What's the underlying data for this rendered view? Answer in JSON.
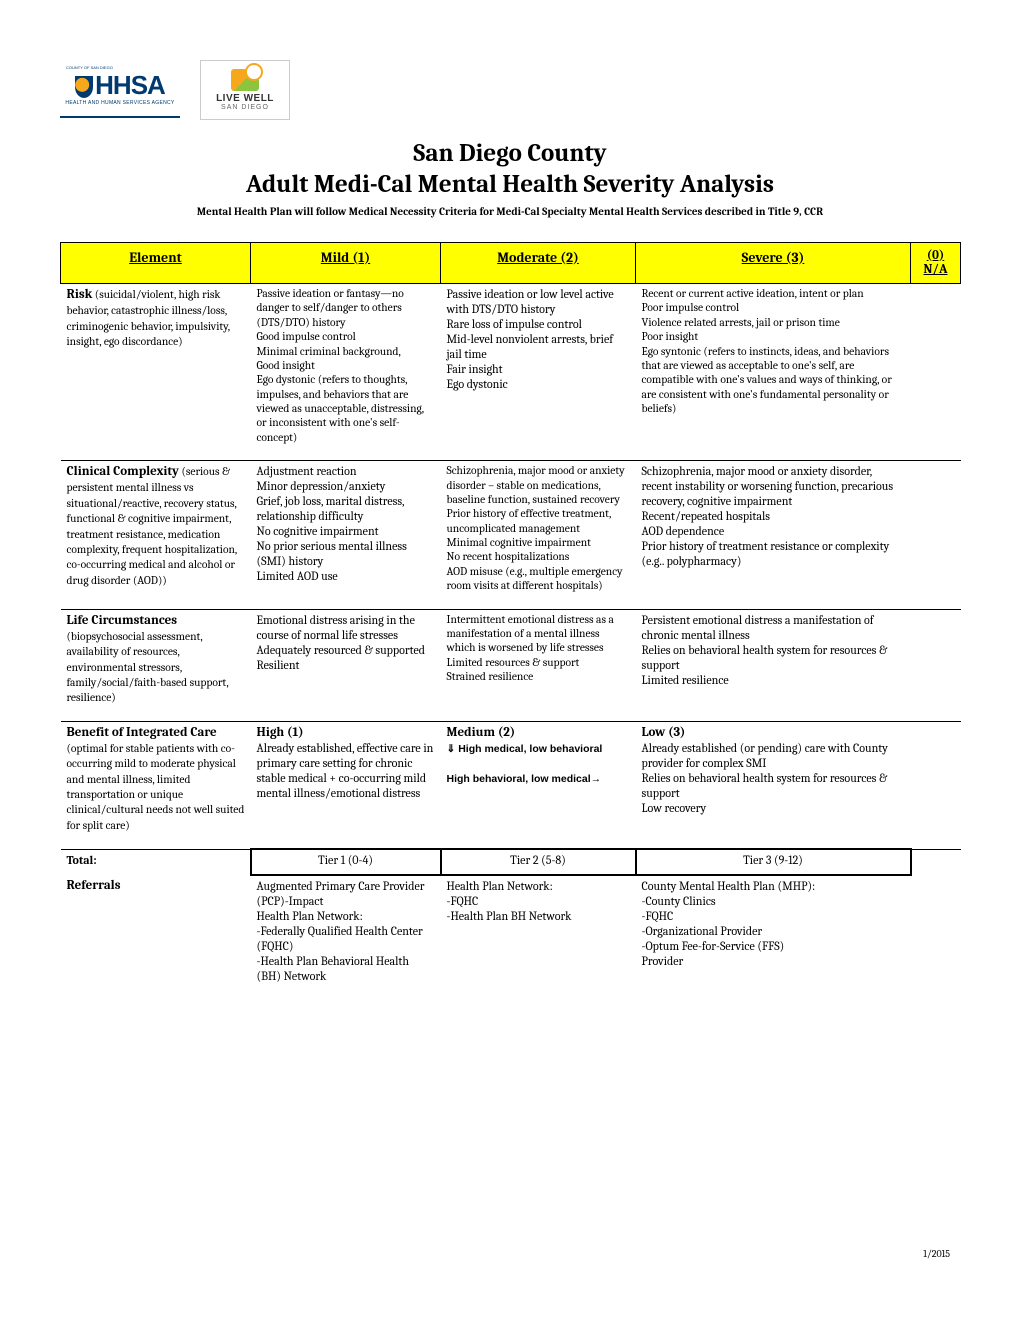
{
  "logos": {
    "hhsa_top": "COUNTY OF SAN DIEGO",
    "hhsa_main": "HHSA",
    "hhsa_sub": "HEALTH AND HUMAN SERVICES AGENCY",
    "livewell_line1": "LIVE WELL",
    "livewell_line2": "SAN DIEGO"
  },
  "title_line1": "San Diego County",
  "title_line2": "Adult Medi-Cal Mental Health Severity Analysis",
  "subtitle": "Mental Health Plan will follow Medical Necessity Criteria for Medi-Cal Specialty Mental Health Services described in Title 9, CCR",
  "headers": {
    "element": "Element",
    "mild": "Mild (1)",
    "moderate": "Moderate (2)",
    "severe": "Severe (3)",
    "na_top": "(0)",
    "na_bot": "N/A"
  },
  "rows": {
    "risk": {
      "title": "Risk",
      "desc": " (suicidal/violent, high risk behavior, catastrophic illness/loss, criminogenic behavior, impulsivity, insight, ego discordance)",
      "mild": "Passive ideation or fantasy—no danger to self/danger to others (DTS/DTO) history\nGood impulse control\nMinimal criminal background,\nGood insight\nEgo dystonic (refers to thoughts, impulses, and behaviors that are viewed as unacceptable, distressing, or inconsistent with one's self-concept)",
      "moderate": "Passive ideation or low level active with DTS/DTO history\nRare loss of impulse control\nMid-level nonviolent arrests, brief jail time\nFair insight\nEgo dystonic",
      "severe": "Recent or current active ideation, intent or plan\nPoor impulse control\nViolence related arrests, jail or prison time\nPoor insight\nEgo syntonic (refers to instincts, ideas, and behaviors that are viewed as acceptable to one's self, are compatible with one's values and ways of thinking, or are consistent with one's fundamental personality or beliefs)"
    },
    "clinical": {
      "title": "Clinical Complexity",
      "desc": " (serious & persistent mental illness vs situational/reactive, recovery status, functional & cognitive impairment, treatment resistance, medication complexity, frequent hospitalization, co-occurring medical and alcohol or drug disorder (AOD))",
      "mild": "Adjustment reaction\nMinor depression/anxiety\nGrief, job loss, marital distress, relationship difficulty\nNo cognitive impairment\nNo prior serious mental illness (SMI) history\nLimited AOD use",
      "moderate": "Schizophrenia, major mood or anxiety disorder – stable on medications, baseline function, sustained recovery\nPrior history of effective treatment, uncomplicated management\nMinimal cognitive impairment\nNo recent hospitalizations\nAOD misuse (e.g., multiple emergency room visits at different hospitals)",
      "severe": "Schizophrenia, major mood or anxiety disorder, recent instability or worsening function, precarious recovery, cognitive impairment\nRecent/repeated hospitals\nAOD dependence\nPrior history of treatment resistance or complexity (e.g.. polypharmacy)"
    },
    "life": {
      "title": "Life Circumstances",
      "desc": " (biopsychosocial assessment, availability of resources, environmental stressors, family/social/faith-based support, resilience)",
      "mild": "Emotional distress arising in the course of normal life stresses\nAdequately resourced & supported\nResilient",
      "moderate": "Intermittent emotional distress as a manifestation of a mental illness which is worsened by life stresses\nLimited resources & support\nStrained resilience",
      "severe": "Persistent emotional distress a manifestation of chronic mental illness\nRelies on behavioral health system for resources & support\nLimited resilience"
    },
    "benefit": {
      "title": "Benefit of Integrated Care",
      "desc": " (optimal for stable patients with co-occurring mild to moderate physical and mental illness, limited transportation or unique clinical/cultural needs not well suited for split care)",
      "mild_hdr": "High (1)",
      "mild": "Already established, effective care in primary care setting for chronic stable medical + co-occurring mild mental illness/emotional distress",
      "moderate_hdr": "Medium (2)",
      "moderate_l1": "⇓ High medical, low behavioral",
      "moderate_l2": "High behavioral, low medical→",
      "severe_hdr": "Low (3)",
      "severe": "Already established (or pending) care with County provider for complex SMI\nRelies on behavioral health system for resources & support\nLow recovery"
    }
  },
  "total": {
    "label": "Total:",
    "tier1": "Tier 1 (0-4)",
    "tier2": "Tier 2 (5-8)",
    "tier3": "Tier 3 (9-12)"
  },
  "referrals": {
    "label": "Referrals",
    "c1": "Augmented Primary Care Provider (PCP)-Impact\nHealth Plan Network:\n-Federally Qualified Health Center (FQHC)\n-Health Plan Behavioral Health (BH) Network",
    "c2": "Health Plan Network:\n-FQHC\n-Health Plan BH Network",
    "c3": "County Mental Health Plan (MHP):\n-County Clinics\n-FQHC\n-Organizational Provider\n-Optum Fee-for-Service (FFS)\n    Provider"
  },
  "footer_date": "1/2015"
}
